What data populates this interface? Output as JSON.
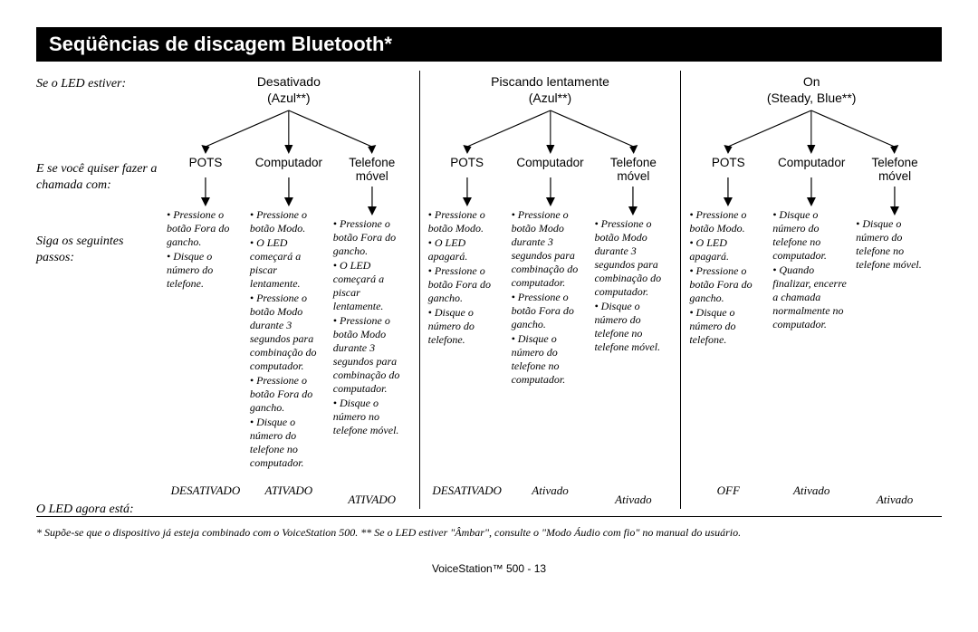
{
  "title": "Seqüências de discagem Bluetooth*",
  "row_labels": {
    "led_state": "Se o LED estiver:",
    "call_with": "E se você quiser fazer a chamada com:",
    "steps": "Siga os seguintes passos:",
    "led_now": "O LED agora está:"
  },
  "groups": [
    {
      "header_line1": "Desativado",
      "header_line2": "(Azul**)",
      "devices": [
        {
          "name": "POTS",
          "steps": [
            "• Pressione o botão Fora do gancho.",
            "• Disque o número do telefone."
          ],
          "led_now": "DESATIVADO"
        },
        {
          "name": "Computador",
          "steps": [
            "• Pressione o botão Modo.",
            "• O LED começará a piscar lentamente.",
            "• Pressione o botão Modo durante 3 segundos para combinação do computador.",
            "• Pressione o botão Fora do gancho.",
            "• Disque o número do telefone no computador."
          ],
          "led_now": "ATIVADO"
        },
        {
          "name": "Telefone móvel",
          "steps": [
            "• Pressione o botão Fora do gancho.",
            "• O LED começará a piscar lentamente.",
            "• Pressione o botão Modo durante 3 segundos para combinação do computador.",
            "• Disque o número no telefone móvel."
          ],
          "led_now": "ATIVADO"
        }
      ]
    },
    {
      "header_line1": "Piscando lentamente",
      "header_line2": "(Azul**)",
      "devices": [
        {
          "name": "POTS",
          "steps": [
            "• Pressione o botão Modo.",
            "• O LED apagará.",
            "• Pressione o botão Fora do gancho.",
            "• Disque o número do telefone."
          ],
          "led_now": "DESATIVADO"
        },
        {
          "name": "Computador",
          "steps": [
            "• Pressione o botão Modo durante 3 segundos para combinação do computador.",
            "• Pressione o botão Fora do gancho.",
            "• Disque o número do telefone no computador."
          ],
          "led_now": "Ativado"
        },
        {
          "name": "Telefone móvel",
          "steps": [
            "• Pressione o botão Modo durante 3 segundos para combinação do computador.",
            "• Disque o número do telefone no telefone móvel."
          ],
          "led_now": "Ativado"
        }
      ]
    },
    {
      "header_line1": "On",
      "header_line2": "(Steady, Blue**)",
      "devices": [
        {
          "name": "POTS",
          "steps": [
            "• Pressione o botão Modo.",
            "• O LED apagará.",
            "• Pressione o botão Fora do gancho.",
            "• Disque o número do telefone."
          ],
          "led_now": "OFF"
        },
        {
          "name": "Computador",
          "steps": [
            "• Disque o número do telefone no computador.",
            "• Quando finalizar, encerre a chamada normalmente no computador."
          ],
          "led_now": "Ativado"
        },
        {
          "name": "Telefone móvel",
          "steps": [
            "• Disque o número do telefone no telefone móvel."
          ],
          "led_now": "Ativado"
        }
      ]
    }
  ],
  "footnote": "* Supõe-se que o dispositivo já esteja combinado com o VoiceStation 500. ** Se o LED estiver \"Âmbar\", consulte o \"Modo Áudio com fio\" no manual do usuário.",
  "page_number": "VoiceStation™ 500 - 13",
  "style": {
    "title_bg": "#000000",
    "title_color": "#ffffff",
    "text_color": "#000000",
    "header_font": "Arial, Helvetica, sans-serif",
    "body_font": "Georgia, 'Times New Roman', serif"
  }
}
